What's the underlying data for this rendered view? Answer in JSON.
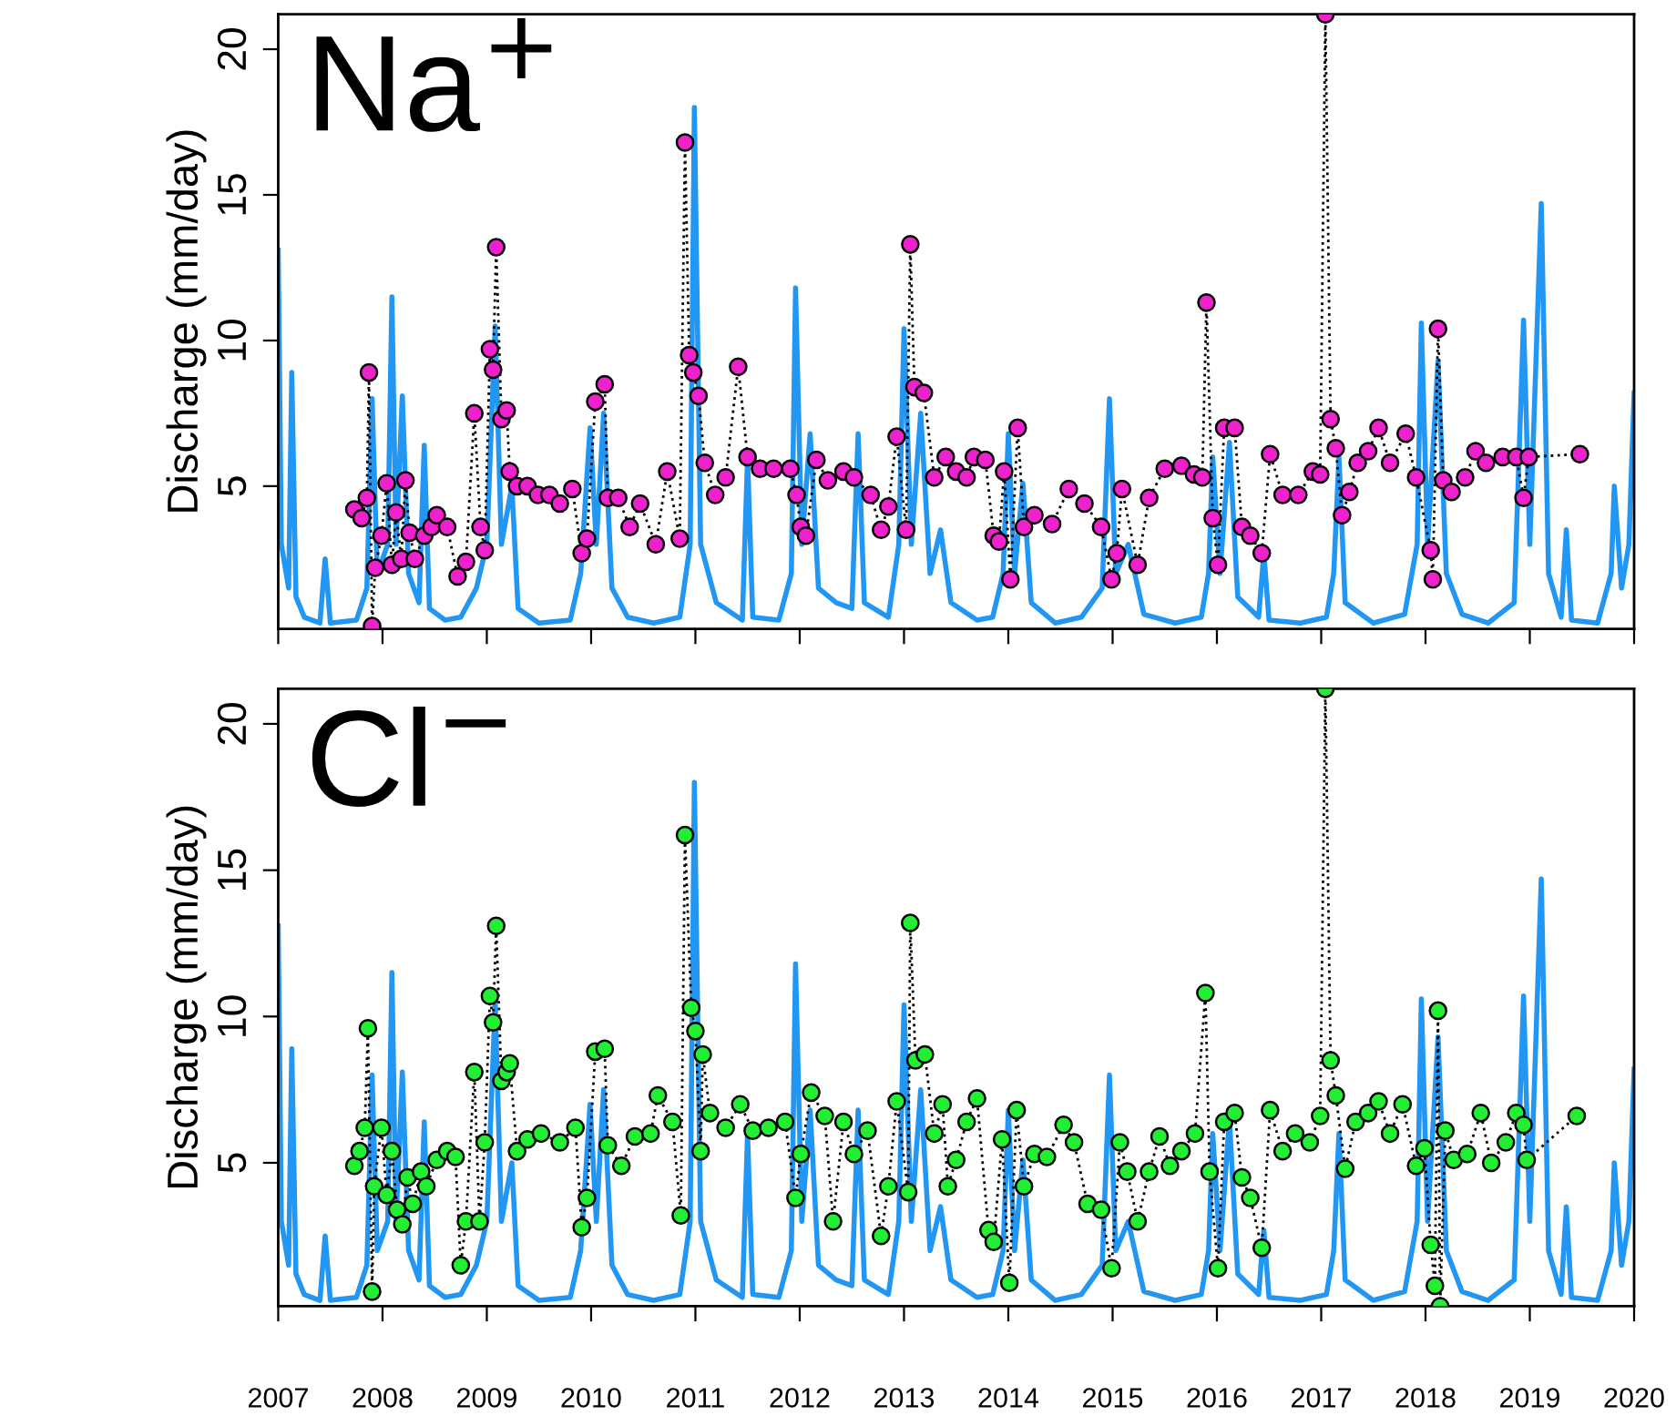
{
  "chart_data": [
    {
      "type": "line",
      "annotations": [
        "Na$^{+}$"
      ],
      "ylabel": "Discharge (mm/day)",
      "xlim": [
        2007,
        2020
      ],
      "xticks": [
        {
          "value": 2007,
          "label": null
        },
        {
          "value": 2008,
          "label": null
        },
        {
          "value": 2009,
          "label": null
        },
        {
          "value": 2010,
          "label": null
        },
        {
          "value": 2011,
          "label": null
        },
        {
          "value": 2012,
          "label": null
        },
        {
          "value": 2013,
          "label": null
        },
        {
          "value": 2014,
          "label": null
        },
        {
          "value": 2015,
          "label": null
        },
        {
          "value": 2016,
          "label": null
        },
        {
          "value": 2017,
          "label": null
        },
        {
          "value": 2018,
          "label": null
        },
        {
          "value": 2019,
          "label": null
        },
        {
          "value": 2020,
          "label": null
        }
      ],
      "ylim": [
        0.1,
        21.2
      ],
      "yticks": [
        5,
        10,
        15,
        20
      ],
      "tick_labels": "y",
      "grid": false,
      "legend": false,
      "series": [
        {
          "type": "line",
          "color": "#2196f3",
          "marker": "none",
          "line_style": "solid",
          "x": [
            2007.0,
            2007.03,
            2007.1,
            2007.13,
            2007.17,
            2007.25,
            2007.4,
            2007.45,
            2007.5,
            2007.75,
            2007.85,
            2007.9,
            2007.95,
            2008.05,
            2008.09,
            2008.13,
            2008.19,
            2008.25,
            2008.35,
            2008.4,
            2008.45,
            2008.6,
            2008.75,
            2008.9,
            2009.0,
            2009.08,
            2009.14,
            2009.24,
            2009.3,
            2009.5,
            2009.8,
            2009.9,
            2009.99,
            2010.05,
            2010.12,
            2010.2,
            2010.35,
            2010.6,
            2010.85,
            2010.95,
            2010.99,
            2011.05,
            2011.2,
            2011.45,
            2011.5,
            2011.55,
            2011.8,
            2011.92,
            2011.96,
            2012.02,
            2012.1,
            2012.18,
            2012.35,
            2012.5,
            2012.56,
            2012.62,
            2012.85,
            2012.95,
            2013.0,
            2013.07,
            2013.16,
            2013.25,
            2013.35,
            2013.45,
            2013.7,
            2013.85,
            2013.95,
            2014.0,
            2014.06,
            2014.14,
            2014.22,
            2014.45,
            2014.7,
            2014.9,
            2014.97,
            2015.03,
            2015.15,
            2015.3,
            2015.6,
            2015.85,
            2015.92,
            2015.96,
            2016.03,
            2016.12,
            2016.2,
            2016.4,
            2016.45,
            2016.5,
            2016.8,
            2017.05,
            2017.12,
            2017.17,
            2017.23,
            2017.5,
            2017.8,
            2017.92,
            2017.96,
            2018.02,
            2018.12,
            2018.2,
            2018.35,
            2018.6,
            2018.85,
            2018.94,
            2019.0,
            2019.11,
            2019.18,
            2019.3,
            2019.35,
            2019.4,
            2019.65,
            2019.78,
            2019.81,
            2019.88,
            2019.95,
            2020.0
          ],
          "values": [
            13.1,
            3,
            1.5,
            8.9,
            1.2,
            0.5,
            0.3,
            2.5,
            0.3,
            0.4,
            1.5,
            8.0,
            2,
            3,
            11.5,
            3,
            8.1,
            2,
            1,
            6.4,
            0.8,
            0.4,
            0.5,
            1.5,
            3,
            10.5,
            3,
            5,
            0.8,
            0.3,
            0.4,
            2,
            7.0,
            3,
            7.5,
            1.5,
            0.5,
            0.3,
            0.5,
            3,
            18.0,
            3,
            1,
            0.4,
            6,
            0.5,
            0.4,
            2,
            11.8,
            3,
            6.8,
            1.5,
            1,
            0.8,
            6.8,
            1,
            0.5,
            3,
            10.4,
            3,
            7.5,
            2,
            3.5,
            1,
            0.4,
            0.5,
            2,
            6.8,
            2,
            5.1,
            1,
            0.3,
            0.5,
            1.5,
            8.0,
            2,
            3,
            0.6,
            0.3,
            0.5,
            2,
            6.0,
            2,
            6.5,
            1.2,
            0.5,
            2.7,
            0.4,
            0.3,
            0.5,
            2,
            6.0,
            1,
            0.3,
            0.6,
            3,
            10.6,
            3,
            9.3,
            2,
            0.6,
            0.3,
            1,
            10.7,
            3,
            14.7,
            2,
            0.5,
            3.5,
            0.4,
            0.3,
            2,
            5,
            1.5,
            3,
            8.2
          ]
        },
        {
          "color": "#ee22cc",
          "marker": "circle",
          "line_style": "dotted",
          "x": [
            2007.73,
            2007.8,
            2007.85,
            2007.87,
            2007.9,
            2007.93,
            2007.99,
            2008.04,
            2008.09,
            2008.13,
            2008.18,
            2008.22,
            2008.26,
            2008.31,
            2008.4,
            2008.47,
            2008.52,
            2008.62,
            2008.72,
            2008.8,
            2008.88,
            2008.94,
            2008.98,
            2009.03,
            2009.06,
            2009.09,
            2009.14,
            2009.19,
            2009.22,
            2009.29,
            2009.39,
            2009.49,
            2009.6,
            2009.7,
            2009.82,
            2009.91,
            2009.96,
            2010.04,
            2010.13,
            2010.16,
            2010.26,
            2010.37,
            2010.47,
            2010.62,
            2010.73,
            2010.85,
            2010.9,
            2010.94,
            2010.98,
            2011.03,
            2011.09,
            2011.19,
            2011.29,
            2011.41,
            2011.5,
            2011.62,
            2011.75,
            2011.91,
            2011.97,
            2012.01,
            2012.06,
            2012.16,
            2012.27,
            2012.42,
            2012.52,
            2012.68,
            2012.78,
            2012.85,
            2012.93,
            2013.02,
            2013.06,
            2013.1,
            2013.19,
            2013.29,
            2013.4,
            2013.5,
            2013.6,
            2013.67,
            2013.78,
            2013.86,
            2013.91,
            2013.96,
            2014.02,
            2014.09,
            2014.15,
            2014.25,
            2014.42,
            2014.58,
            2014.73,
            2014.89,
            2014.99,
            2015.04,
            2015.09,
            2015.24,
            2015.35,
            2015.5,
            2015.66,
            2015.78,
            2015.86,
            2015.9,
            2015.96,
            2016.01,
            2016.07,
            2016.17,
            2016.24,
            2016.32,
            2016.43,
            2016.51,
            2016.63,
            2016.78,
            2016.92,
            2016.99,
            2017.04,
            2017.09,
            2017.14,
            2017.2,
            2017.27,
            2017.35,
            2017.45,
            2017.55,
            2017.66,
            2017.81,
            2017.91,
            2018.05,
            2018.07,
            2018.12,
            2018.17,
            2018.25,
            2018.38,
            2018.48,
            2018.58,
            2018.74,
            2018.87,
            2018.94,
            2018.99,
            2019.48
          ],
          "values": [
            4.2,
            3.9,
            4.6,
            8.9,
            0.2,
            2.2,
            3.3,
            5.1,
            2.3,
            4.1,
            2.5,
            5.2,
            3.4,
            2.5,
            3.3,
            3.6,
            4.0,
            3.6,
            1.9,
            2.4,
            7.5,
            3.6,
            2.8,
            9.7,
            9.0,
            13.2,
            7.3,
            7.6,
            5.5,
            5.0,
            5.0,
            4.7,
            4.7,
            4.4,
            4.9,
            2.7,
            3.2,
            7.9,
            8.5,
            4.6,
            4.6,
            3.6,
            4.4,
            3.0,
            5.5,
            3.2,
            16.8,
            9.5,
            8.9,
            8.1,
            5.8,
            4.7,
            5.3,
            9.1,
            6.0,
            5.6,
            5.6,
            5.6,
            4.7,
            3.6,
            3.3,
            5.9,
            5.2,
            5.5,
            5.3,
            4.7,
            3.5,
            4.3,
            6.7,
            3.5,
            13.3,
            8.4,
            8.2,
            5.3,
            6.0,
            5.5,
            5.3,
            6.0,
            5.9,
            3.3,
            3.1,
            5.5,
            1.8,
            7.0,
            3.6,
            4.0,
            3.7,
            4.9,
            4.4,
            3.6,
            1.8,
            2.7,
            4.9,
            2.3,
            4.6,
            5.6,
            5.7,
            5.4,
            5.3,
            11.3,
            3.9,
            2.3,
            7.0,
            7.0,
            3.6,
            3.3,
            2.7,
            6.1,
            4.7,
            4.7,
            5.5,
            5.4,
            21.2,
            7.3,
            6.3,
            4.0,
            4.8,
            5.8,
            6.2,
            7.0,
            5.8,
            6.8,
            5.3,
            2.8,
            1.8,
            10.4,
            5.2,
            4.8,
            5.3,
            6.2,
            5.8,
            6.0,
            6.0,
            4.6,
            6.0,
            6.1
          ]
        }
      ]
    },
    {
      "type": "line",
      "annotations": [
        "Cl$^{−}$"
      ],
      "ylabel": "Discharge (mm/day)",
      "xlim": [
        2007,
        2020
      ],
      "xticks": [
        2007,
        2008,
        2009,
        2010,
        2011,
        2012,
        2013,
        2014,
        2015,
        2016,
        2017,
        2018,
        2019,
        2020
      ],
      "ylim": [
        0.1,
        21.2
      ],
      "yticks": [
        5,
        10,
        15,
        20
      ],
      "grid": false,
      "legend": false,
      "series": [
        {
          "type": "line",
          "color": "#2196f3",
          "marker": "none",
          "line_style": "solid",
          "x": [
            2007.0,
            2007.03,
            2007.1,
            2007.13,
            2007.17,
            2007.25,
            2007.4,
            2007.45,
            2007.5,
            2007.75,
            2007.85,
            2007.9,
            2007.95,
            2008.05,
            2008.09,
            2008.13,
            2008.19,
            2008.25,
            2008.35,
            2008.4,
            2008.45,
            2008.6,
            2008.75,
            2008.9,
            2009.0,
            2009.08,
            2009.14,
            2009.24,
            2009.3,
            2009.5,
            2009.8,
            2009.9,
            2009.99,
            2010.05,
            2010.12,
            2010.2,
            2010.35,
            2010.6,
            2010.85,
            2010.95,
            2010.99,
            2011.05,
            2011.2,
            2011.45,
            2011.5,
            2011.55,
            2011.8,
            2011.92,
            2011.96,
            2012.02,
            2012.1,
            2012.18,
            2012.35,
            2012.5,
            2012.56,
            2012.62,
            2012.85,
            2012.95,
            2013.0,
            2013.07,
            2013.16,
            2013.25,
            2013.35,
            2013.45,
            2013.7,
            2013.85,
            2013.95,
            2014.0,
            2014.06,
            2014.14,
            2014.22,
            2014.45,
            2014.7,
            2014.9,
            2014.97,
            2015.03,
            2015.15,
            2015.3,
            2015.6,
            2015.85,
            2015.92,
            2015.96,
            2016.03,
            2016.12,
            2016.2,
            2016.4,
            2016.45,
            2016.5,
            2016.8,
            2017.05,
            2017.12,
            2017.17,
            2017.23,
            2017.5,
            2017.8,
            2017.92,
            2017.96,
            2018.02,
            2018.12,
            2018.2,
            2018.35,
            2018.6,
            2018.85,
            2018.94,
            2019.0,
            2019.11,
            2019.18,
            2019.3,
            2019.35,
            2019.4,
            2019.65,
            2019.78,
            2019.81,
            2019.88,
            2019.95,
            2020.0
          ],
          "values": [
            13.1,
            3,
            1.5,
            8.9,
            1.2,
            0.5,
            0.3,
            2.5,
            0.3,
            0.4,
            1.5,
            8.0,
            2,
            3,
            11.5,
            3,
            8.1,
            2,
            1,
            6.4,
            0.8,
            0.4,
            0.5,
            1.5,
            3,
            10.5,
            3,
            5,
            0.8,
            0.3,
            0.4,
            2,
            7.0,
            3,
            7.5,
            1.5,
            0.5,
            0.3,
            0.5,
            3,
            18.0,
            3,
            1,
            0.4,
            6,
            0.5,
            0.4,
            2,
            11.8,
            3,
            6.8,
            1.5,
            1,
            0.8,
            6.8,
            1,
            0.5,
            3,
            10.4,
            3,
            7.5,
            2,
            3.5,
            1,
            0.4,
            0.5,
            2,
            6.8,
            2,
            5.1,
            1,
            0.3,
            0.5,
            1.5,
            8.0,
            2,
            3,
            0.6,
            0.3,
            0.5,
            2,
            6.0,
            2,
            6.5,
            1.2,
            0.5,
            2.7,
            0.4,
            0.3,
            0.5,
            2,
            6.0,
            1,
            0.3,
            0.6,
            3,
            10.6,
            3,
            9.3,
            2,
            0.6,
            0.3,
            1,
            10.7,
            3,
            14.7,
            2,
            0.5,
            3.5,
            0.4,
            0.3,
            2,
            5,
            1.5,
            3,
            8.2
          ]
        },
        {
          "color": "#22ee33",
          "marker": "circle",
          "line_style": "dotted",
          "x": [
            2007.73,
            2007.78,
            2007.83,
            2007.86,
            2007.9,
            2007.92,
            2007.99,
            2008.04,
            2008.09,
            2008.14,
            2008.19,
            2008.24,
            2008.29,
            2008.37,
            2008.42,
            2008.52,
            2008.62,
            2008.7,
            2008.75,
            2008.8,
            2008.88,
            2008.93,
            2008.98,
            2009.03,
            2009.06,
            2009.09,
            2009.14,
            2009.19,
            2009.22,
            2009.29,
            2009.39,
            2009.52,
            2009.7,
            2009.85,
            2009.91,
            2009.96,
            2010.04,
            2010.13,
            2010.16,
            2010.29,
            2010.42,
            2010.57,
            2010.64,
            2010.78,
            2010.86,
            2010.9,
            2010.96,
            2011.0,
            2011.05,
            2011.07,
            2011.14,
            2011.29,
            2011.43,
            2011.55,
            2011.7,
            2011.86,
            2011.96,
            2012.01,
            2012.11,
            2012.24,
            2012.32,
            2012.42,
            2012.52,
            2012.65,
            2012.78,
            2012.85,
            2012.93,
            2013.04,
            2013.06,
            2013.11,
            2013.2,
            2013.29,
            2013.37,
            2013.42,
            2013.5,
            2013.6,
            2013.7,
            2013.81,
            2013.86,
            2013.94,
            2014.01,
            2014.08,
            2014.15,
            2014.25,
            2014.37,
            2014.53,
            2014.63,
            2014.76,
            2014.89,
            2014.99,
            2015.07,
            2015.14,
            2015.24,
            2015.35,
            2015.45,
            2015.55,
            2015.66,
            2015.79,
            2015.89,
            2015.93,
            2016.01,
            2016.07,
            2016.17,
            2016.24,
            2016.32,
            2016.43,
            2016.51,
            2016.63,
            2016.75,
            2016.89,
            2016.99,
            2017.04,
            2017.09,
            2017.14,
            2017.23,
            2017.33,
            2017.45,
            2017.55,
            2017.66,
            2017.78,
            2017.91,
            2017.99,
            2018.05,
            2018.09,
            2018.12,
            2018.14,
            2018.19,
            2018.27,
            2018.4,
            2018.53,
            2018.63,
            2018.77,
            2018.87,
            2018.94,
            2018.97,
            2019.45
          ],
          "values": [
            4.9,
            5.4,
            6.2,
            9.6,
            0.6,
            4.2,
            6.2,
            3.9,
            5.4,
            3.4,
            2.9,
            4.5,
            3.6,
            4.7,
            4.2,
            5.1,
            5.4,
            5.2,
            1.5,
            3.0,
            8.1,
            3.0,
            5.7,
            10.7,
            9.8,
            13.1,
            7.8,
            8.1,
            8.4,
            5.4,
            5.8,
            6.0,
            5.7,
            6.2,
            2.8,
            3.8,
            8.8,
            8.9,
            5.6,
            4.9,
            5.9,
            6.0,
            7.3,
            6.4,
            3.2,
            16.2,
            10.3,
            9.5,
            5.4,
            8.7,
            6.7,
            6.2,
            7.0,
            6.1,
            6.2,
            6.4,
            3.8,
            5.3,
            7.4,
            6.6,
            3.0,
            6.4,
            5.3,
            6.1,
            2.5,
            4.2,
            7.1,
            4.0,
            13.2,
            8.5,
            8.7,
            6.0,
            7.0,
            4.2,
            5.1,
            6.4,
            7.2,
            2.7,
            2.3,
            5.8,
            0.9,
            6.8,
            4.2,
            5.3,
            5.2,
            6.3,
            5.7,
            3.6,
            3.4,
            1.4,
            5.7,
            4.7,
            3.0,
            4.7,
            5.9,
            4.9,
            5.4,
            6.0,
            10.8,
            4.7,
            1.4,
            6.4,
            6.7,
            4.5,
            3.8,
            2.1,
            6.8,
            5.4,
            6.0,
            5.7,
            6.6,
            21.2,
            8.5,
            7.3,
            4.8,
            6.4,
            6.7,
            7.1,
            6.0,
            7.0,
            4.9,
            5.5,
            2.2,
            0.8,
            10.2,
            0.1,
            6.1,
            5.1,
            5.3,
            6.7,
            5.0,
            5.7,
            6.7,
            6.3,
            5.1,
            6.6
          ]
        }
      ]
    }
  ]
}
